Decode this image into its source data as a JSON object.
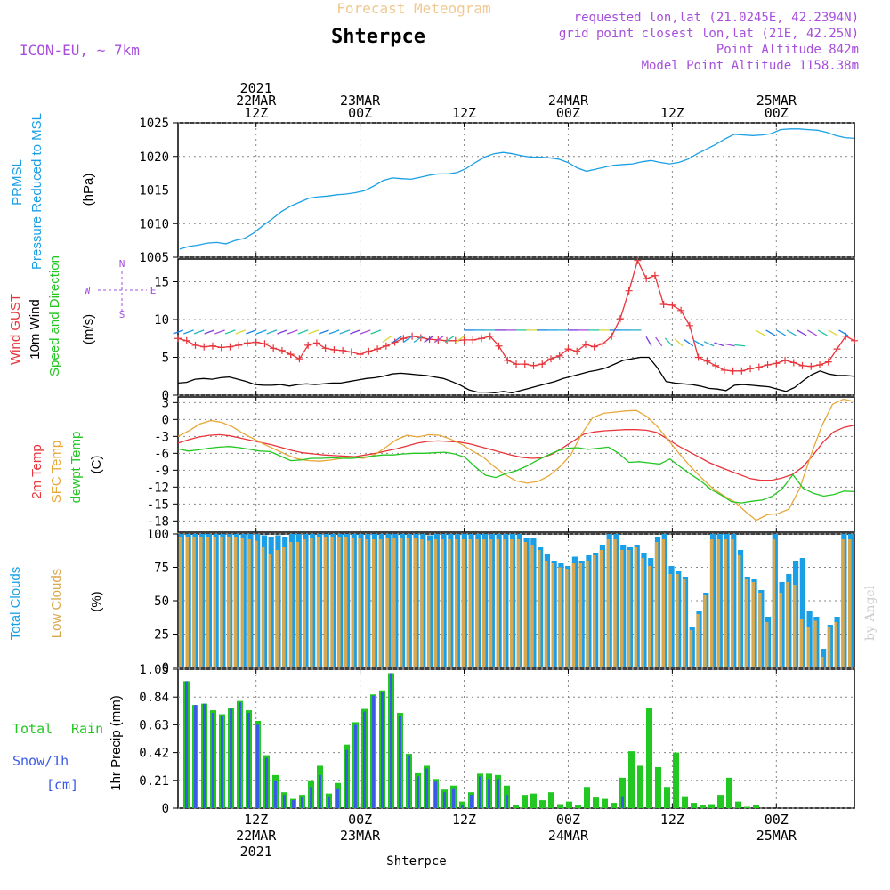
{
  "header": {
    "title_top": "Forecast Meteogram",
    "station": "Shterpce",
    "model": "ICON-EU, ~ 7km",
    "requested": "requested lon,lat (21.0245E, 42.2394N)",
    "gridpoint": "grid point closest lon,lat (21E, 42.25N)",
    "point_alt": "Point Altitude 842m",
    "model_alt": "Model Point Altitude 1158.38m",
    "footer_station": "Shterpce",
    "watermark": "by Angel"
  },
  "colors": {
    "pressure": "#1a9fe6",
    "gust": "#e8343a",
    "wind": "#000000",
    "temp2m": "#e8343a",
    "sfc": "#e8a83a",
    "dewpt": "#22c722",
    "total_clouds": "#1a9fe6",
    "low_clouds": "#d8a84e",
    "rain": "#22c722",
    "snow": "#3a5ae8",
    "meta": "#a74fdc"
  },
  "time_axis": {
    "top_labels": [
      {
        "t": 9,
        "lines": [
          "2021",
          "22MAR",
          "12Z"
        ]
      },
      {
        "t": 21,
        "lines": [
          "23MAR",
          "00Z"
        ]
      },
      {
        "t": 33,
        "lines": [
          "12Z"
        ]
      },
      {
        "t": 45,
        "lines": [
          "24MAR",
          "00Z"
        ]
      },
      {
        "t": 57,
        "lines": [
          "12Z"
        ]
      },
      {
        "t": 69,
        "lines": [
          "25MAR",
          "00Z"
        ]
      }
    ],
    "bottom_labels": [
      {
        "t": 9,
        "lines": [
          "12Z",
          "22MAR",
          "2021"
        ]
      },
      {
        "t": 21,
        "lines": [
          "00Z",
          "23MAR"
        ]
      },
      {
        "t": 33,
        "lines": [
          "12Z"
        ]
      },
      {
        "t": 45,
        "lines": [
          "00Z",
          "24MAR"
        ]
      },
      {
        "t": 57,
        "lines": [
          "12Z"
        ]
      },
      {
        "t": 69,
        "lines": [
          "00Z",
          "25MAR"
        ]
      }
    ]
  },
  "chart_data": [
    {
      "type": "line",
      "panel_labels": [
        "PRMSL",
        "Pressure Reduced to MSL"
      ],
      "unit_label": "(hPa)",
      "ylim": [
        1005,
        1025
      ],
      "yticks": [
        1005,
        1010,
        1015,
        1020,
        1025
      ],
      "series": [
        {
          "name": "PRMSL",
          "values": [
            1006.2,
            1006.6,
            1006.8,
            1007.1,
            1007.2,
            1007.0,
            1007.5,
            1007.8,
            1008.6,
            1009.7,
            1010.7,
            1011.8,
            1012.6,
            1013.2,
            1013.8,
            1014.0,
            1014.1,
            1014.3,
            1014.4,
            1014.6,
            1014.9,
            1015.6,
            1016.4,
            1016.8,
            1016.7,
            1016.6,
            1016.9,
            1017.2,
            1017.4,
            1017.4,
            1017.6,
            1018.2,
            1019.1,
            1019.9,
            1020.4,
            1020.6,
            1020.4,
            1020.1,
            1019.9,
            1019.9,
            1019.8,
            1019.6,
            1019.1,
            1018.3,
            1017.8,
            1018.1,
            1018.4,
            1018.7,
            1018.8,
            1018.9,
            1019.2,
            1019.4,
            1019.1,
            1018.9,
            1019.1,
            1019.6,
            1020.4,
            1021.1,
            1021.8,
            1022.6,
            1023.3,
            1023.2,
            1023.1,
            1023.2,
            1023.4,
            1024.0,
            1024.1,
            1024.1,
            1024.0,
            1023.9,
            1023.6,
            1023.1,
            1022.8,
            1022.7
          ]
        }
      ]
    },
    {
      "type": "line",
      "panel_labels": [
        "Wind GUST",
        "10m Wind",
        "Speed and Direction"
      ],
      "unit_label": "(m/s)",
      "compass": {
        "n": "N",
        "s": "S",
        "w": "W",
        "e": "E"
      },
      "ylim": [
        0,
        18
      ],
      "yticks": [
        0,
        5,
        10,
        15
      ],
      "series": [
        {
          "name": "Wind GUST",
          "values": [
            7.5,
            7.2,
            6.6,
            6.4,
            6.5,
            6.3,
            6.4,
            6.6,
            6.9,
            7.0,
            6.8,
            6.2,
            5.9,
            5.4,
            4.8,
            6.6,
            6.9,
            6.2,
            6.0,
            5.9,
            5.7,
            5.4,
            5.8,
            6.1,
            6.5,
            7.0,
            7.5,
            7.8,
            7.6,
            7.4,
            7.3,
            7.2,
            7.2,
            7.3,
            7.3,
            7.5,
            7.8,
            6.5,
            4.6,
            4.1,
            4.1,
            3.9,
            4.1,
            4.8,
            5.2,
            6.1,
            5.8,
            6.7,
            6.4,
            6.8,
            7.8,
            10.1,
            13.8,
            17.8,
            15.4,
            15.8,
            12.0,
            11.9,
            11.2,
            9.2,
            5.0,
            4.5,
            3.9,
            3.3,
            3.2,
            3.2,
            3.5,
            3.7,
            4.0,
            4.2,
            4.6,
            4.3,
            3.9,
            3.8,
            4.0,
            4.4,
            6.1,
            7.8,
            7.2
          ]
        },
        {
          "name": "10m Wind",
          "values": [
            1.6,
            1.7,
            2.1,
            2.2,
            2.1,
            2.3,
            2.4,
            2.1,
            1.8,
            1.4,
            1.3,
            1.3,
            1.4,
            1.2,
            1.4,
            1.5,
            1.4,
            1.5,
            1.6,
            1.6,
            1.8,
            2.0,
            2.2,
            2.3,
            2.5,
            2.8,
            2.9,
            2.8,
            2.7,
            2.6,
            2.4,
            2.2,
            1.8,
            1.3,
            0.7,
            0.4,
            0.4,
            0.3,
            0.5,
            0.3,
            0.6,
            0.9,
            1.2,
            1.5,
            1.8,
            2.2,
            2.5,
            2.8,
            3.1,
            3.3,
            3.6,
            4.1,
            4.6,
            4.8,
            5.0,
            5.0,
            3.6,
            1.8,
            1.6,
            1.5,
            1.4,
            1.2,
            0.9,
            0.8,
            0.6,
            1.3,
            1.4,
            1.3,
            1.2,
            1.1,
            0.8,
            0.5,
            1.0,
            1.9,
            2.7,
            3.2,
            2.8,
            2.6,
            2.6,
            2.5
          ]
        }
      ]
    },
    {
      "type": "line",
      "panel_labels": [
        "2m Temp",
        "SFC Temp",
        "dewpt Temp"
      ],
      "unit_label": "(C)",
      "ylim": [
        -20,
        4
      ],
      "yticks": [
        -18,
        -15,
        -12,
        -9,
        -6,
        -3,
        0,
        3
      ],
      "series": [
        {
          "name": "2m Temp",
          "values": [
            -4.2,
            -3.6,
            -3.1,
            -2.8,
            -2.7,
            -2.9,
            -3.3,
            -3.7,
            -4.1,
            -4.5,
            -5.0,
            -5.5,
            -5.9,
            -6.1,
            -6.3,
            -6.4,
            -6.5,
            -6.6,
            -6.3,
            -6.0,
            -5.6,
            -5.2,
            -4.7,
            -4.2,
            -3.9,
            -3.8,
            -3.9,
            -4.0,
            -4.3,
            -4.8,
            -5.3,
            -5.8,
            -6.3,
            -6.7,
            -6.9,
            -6.8,
            -6.1,
            -5.0,
            -3.8,
            -2.6,
            -2.2,
            -2.0,
            -1.9,
            -1.8,
            -1.8,
            -1.9,
            -2.3,
            -3.4,
            -4.6,
            -5.6,
            -6.6,
            -7.6,
            -8.4,
            -9.1,
            -9.8,
            -10.5,
            -10.8,
            -10.8,
            -10.4,
            -9.8,
            -8.5,
            -6.4,
            -4.0,
            -2.2,
            -1.4,
            -1.0
          ]
        },
        {
          "name": "SFC Temp",
          "values": [
            -3.0,
            -2.0,
            -0.8,
            -0.2,
            -0.5,
            -1.3,
            -2.5,
            -3.5,
            -4.5,
            -5.4,
            -6.3,
            -7.0,
            -7.3,
            -7.4,
            -7.2,
            -6.9,
            -6.7,
            -6.9,
            -6.3,
            -5.0,
            -3.6,
            -2.8,
            -3.1,
            -2.7,
            -2.8,
            -3.5,
            -4.4,
            -5.6,
            -6.7,
            -8.4,
            -9.8,
            -10.9,
            -11.3,
            -11.0,
            -10.0,
            -8.4,
            -6.3,
            -2.6,
            0.3,
            1.1,
            1.3,
            1.5,
            1.6,
            0.5,
            -1.4,
            -3.8,
            -6.2,
            -8.4,
            -10.4,
            -12.2,
            -13.5,
            -14.6,
            -16.3,
            -17.9,
            -16.9,
            -16.7,
            -15.9,
            -12.2,
            -6.4,
            -1.2,
            2.7,
            3.6,
            3.2
          ]
        },
        {
          "name": "dewpt Temp",
          "values": [
            -5.2,
            -5.6,
            -5.4,
            -5.1,
            -4.9,
            -4.8,
            -5.0,
            -5.3,
            -5.6,
            -5.7,
            -6.5,
            -7.3,
            -7.2,
            -6.9,
            -6.9,
            -6.8,
            -6.9,
            -6.9,
            -6.7,
            -6.5,
            -6.3,
            -6.3,
            -6.1,
            -6.0,
            -6.0,
            -5.9,
            -5.8,
            -6.1,
            -6.7,
            -8.4,
            -9.9,
            -10.3,
            -9.6,
            -9.1,
            -8.3,
            -7.3,
            -6.4,
            -5.6,
            -5.1,
            -5.0,
            -5.3,
            -5.1,
            -4.9,
            -6.0,
            -7.6,
            -7.5,
            -7.7,
            -7.9,
            -7.0,
            -8.4,
            -9.7,
            -10.9,
            -12.4,
            -13.4,
            -14.6,
            -14.8,
            -14.5,
            -14.3,
            -13.6,
            -12.2,
            -9.8,
            -12.2,
            -13.1,
            -13.6,
            -13.3,
            -12.7,
            -12.8
          ]
        }
      ]
    },
    {
      "type": "bar",
      "panel_labels": [
        "Total Clouds",
        "Low Clouds"
      ],
      "unit_label": "(%)",
      "ylim": [
        0,
        100
      ],
      "yticks": [
        0,
        25,
        50,
        75,
        100
      ],
      "series": [
        {
          "name": "Total Clouds",
          "values": [
            100,
            100,
            100,
            100,
            100,
            100,
            100,
            100,
            100,
            100,
            100,
            100,
            99,
            98,
            99,
            98,
            100,
            100,
            100,
            100,
            100,
            100,
            100,
            100,
            100,
            100,
            100,
            100,
            100,
            100,
            100,
            100,
            100,
            100,
            100,
            100,
            99,
            100,
            100,
            100,
            100,
            100,
            100,
            100,
            100,
            100,
            100,
            100,
            100,
            100,
            97,
            97,
            90,
            85,
            80,
            78,
            76,
            83,
            80,
            84,
            86,
            92,
            100,
            100,
            92,
            90,
            92,
            86,
            82,
            98,
            100,
            76,
            72,
            68,
            30,
            42,
            56,
            100,
            100,
            100,
            100,
            88,
            68,
            66,
            58,
            38,
            100,
            64,
            70,
            80,
            82,
            42,
            38,
            14,
            32,
            38,
            100,
            100
          ]
        },
        {
          "name": "Low Clouds",
          "values": [
            98,
            98,
            98,
            98,
            98,
            98,
            98,
            98,
            98,
            97,
            96,
            95,
            90,
            85,
            88,
            90,
            94,
            94,
            96,
            97,
            98,
            98,
            98,
            98,
            98,
            97,
            97,
            96,
            96,
            96,
            97,
            97,
            97,
            97,
            97,
            96,
            95,
            96,
            96,
            96,
            96,
            96,
            96,
            96,
            96,
            96,
            96,
            96,
            96,
            96,
            94,
            92,
            88,
            80,
            78,
            75,
            74,
            78,
            78,
            80,
            84,
            88,
            96,
            96,
            88,
            88,
            90,
            82,
            76,
            94,
            96,
            70,
            70,
            66,
            28,
            40,
            54,
            96,
            96,
            96,
            96,
            84,
            66,
            64,
            56,
            34,
            96,
            56,
            64,
            62,
            36,
            30,
            35,
            8,
            30,
            34,
            96,
            96
          ]
        }
      ]
    },
    {
      "type": "bar",
      "panel_labels": [
        "Total",
        "Rain",
        "Snow/1h",
        "[cm]"
      ],
      "unit_label": "1hr Precip (mm)",
      "ylim": [
        0,
        1.05
      ],
      "yticks": [
        0,
        0.21,
        0.42,
        0.63,
        0.84,
        1.05
      ],
      "series": [
        {
          "name": "Total Rain",
          "values": [
            0.96,
            0.78,
            0.79,
            0.74,
            0.71,
            0.76,
            0.81,
            0.74,
            0.66,
            0.4,
            0.25,
            0.12,
            0.07,
            0.1,
            0.21,
            0.32,
            0.11,
            0.19,
            0.48,
            0.65,
            0.75,
            0.86,
            0.89,
            1.02,
            0.72,
            0.41,
            0.27,
            0.32,
            0.22,
            0.14,
            0.17,
            0.05,
            0.12,
            0.26,
            0.26,
            0.25,
            0.17,
            0.02,
            0.1,
            0.11,
            0.06,
            0.12,
            0.03,
            0.05,
            0.02,
            0.16,
            0.08,
            0.07,
            0.04,
            0.23,
            0.43,
            0.32,
            0.76,
            0.31,
            0.16,
            0.42,
            0.09,
            0.04,
            0.02,
            0.03,
            0.1,
            0.23,
            0.05,
            0.01,
            0.02
          ]
        },
        {
          "name": "Snow/1h",
          "values": [
            0.96,
            0.78,
            0.79,
            0.72,
            0.7,
            0.75,
            0.8,
            0.72,
            0.63,
            0.38,
            0.21,
            0.1,
            0.06,
            0.08,
            0.16,
            0.25,
            0.09,
            0.15,
            0.44,
            0.63,
            0.73,
            0.85,
            0.88,
            1.02,
            0.7,
            0.4,
            0.24,
            0.3,
            0.2,
            0.12,
            0.15,
            0.02,
            0.1,
            0.24,
            0.22,
            0.22,
            0.1,
            0,
            0,
            0,
            0,
            0,
            0,
            0,
            0,
            0,
            0,
            0,
            0,
            0.09,
            0,
            0,
            0,
            0,
            0,
            0,
            0,
            0,
            0,
            0,
            0,
            0,
            0,
            0,
            0
          ]
        }
      ]
    }
  ]
}
